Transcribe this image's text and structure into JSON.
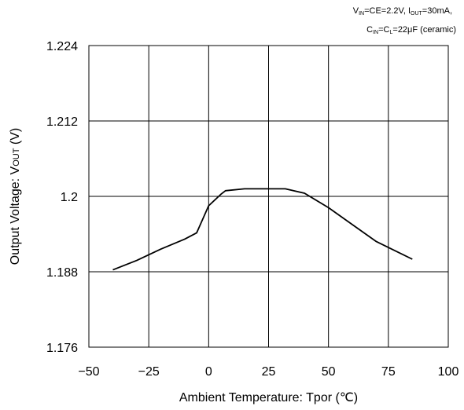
{
  "chart_data": {
    "type": "line",
    "title": "",
    "xlabel": "Ambient Temperature: Tpor (℃)",
    "ylabel": "Output Voltage: V",
    "ylabel_sub": "OUT",
    "ylabel_unit": " (V)",
    "xlim": [
      -50,
      100
    ],
    "ylim": [
      1.176,
      1.224
    ],
    "x_ticks": [
      -50,
      -25,
      0,
      25,
      50,
      75,
      100
    ],
    "x_tick_labels": [
      "−50",
      "−25",
      "0",
      "25",
      "50",
      "75",
      "100"
    ],
    "y_ticks": [
      1.176,
      1.188,
      1.2,
      1.212,
      1.224
    ],
    "y_tick_labels": [
      "1.176",
      "1.188",
      "1.2",
      "1.212",
      "1.224"
    ],
    "grid": true,
    "series": [
      {
        "color": "#000000",
        "x": [
          -40,
          -30,
          -20,
          -10,
          -5,
          0,
          5,
          7,
          15,
          25,
          32,
          40,
          50,
          60,
          70,
          85
        ],
        "y": [
          1.1883,
          1.1898,
          1.1916,
          1.1932,
          1.1942,
          1.1985,
          1.2003,
          1.2009,
          1.2012,
          1.2012,
          1.2012,
          1.2005,
          1.1982,
          1.1955,
          1.1928,
          1.19
        ]
      }
    ],
    "conditions": {
      "line1": {
        "parts": [
          {
            "t": "V",
            "sub": false
          },
          {
            "t": "IN",
            "sub": true
          },
          {
            "t": "=CE=2.2V, I",
            "sub": false
          },
          {
            "t": "OUT",
            "sub": true
          },
          {
            "t": "=30mA,",
            "sub": false
          }
        ]
      },
      "line2": {
        "parts": [
          {
            "t": "C",
            "sub": false
          },
          {
            "t": "IN",
            "sub": true
          },
          {
            "t": "=C",
            "sub": false
          },
          {
            "t": "L",
            "sub": true
          },
          {
            "t": "=22μF (ceramic)",
            "sub": false
          }
        ]
      }
    }
  }
}
